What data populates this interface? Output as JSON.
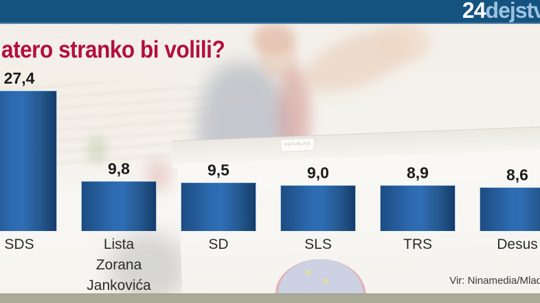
{
  "masthead": {
    "logo_primary": "24",
    "logo_secondary": "dejstv"
  },
  "chart_data": {
    "type": "bar",
    "title": "atero stranko bi volili?",
    "categories": [
      "SDS",
      "Lista Zorana Jankovića",
      "SD",
      "SLS",
      "TRS",
      "Desus"
    ],
    "category_lines": [
      [
        "SDS"
      ],
      [
        "Lista",
        "Zorana",
        "Jankovića"
      ],
      [
        "SD"
      ],
      [
        "SLS"
      ],
      [
        "TRS"
      ],
      [
        "Desus"
      ]
    ],
    "values": [
      27.4,
      9.8,
      9.5,
      9.0,
      8.9,
      8.6
    ],
    "value_labels": [
      "27,4",
      "9,8",
      "9,5",
      "9,0",
      "8,9",
      "8,6"
    ],
    "source": "Vir: Ninamedia/Mlad",
    "ylim": [
      0,
      30
    ],
    "grid": false,
    "legend": false,
    "xlabel": "",
    "ylabel": ""
  },
  "background": {
    "ballot_box_label": "REPUBLIKE"
  },
  "colors": {
    "masthead_bg": "#14537f",
    "logo_primary": "#ffffff",
    "logo_secondary": "#9dc3e1",
    "title_text": "#b30d3e",
    "bar_edge_dark": "#143c6b",
    "bar_mid": "#2f6db4",
    "bar_left": "#1c4c82",
    "value_text": "#1b1b1b",
    "category_text": "#2b2b2b",
    "bottom_strip": "#a9ab96",
    "source_text": "#3a3a3a"
  }
}
